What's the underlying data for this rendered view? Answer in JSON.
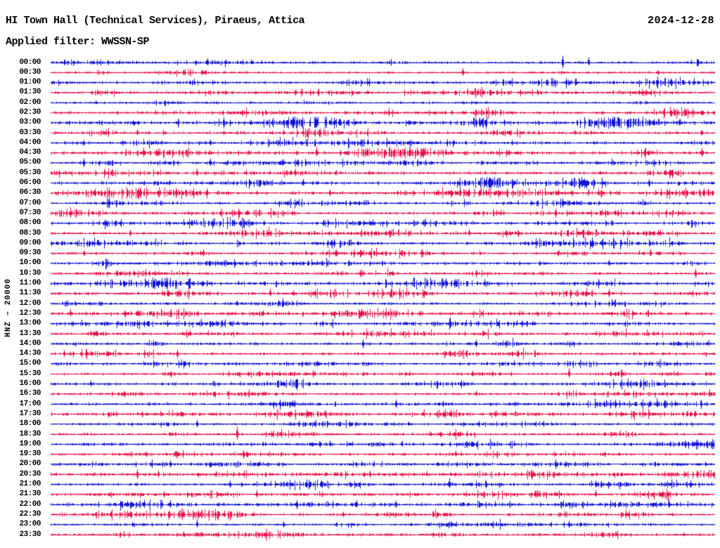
{
  "header": {
    "title": "HI Town Hall (Technical Services), Piraeus, Attica",
    "date": "2024-12-28",
    "filter": "Applied filter: WWSSN-SP"
  },
  "axis": {
    "scale_label": "HNZ – 20000"
  },
  "chart_data": {
    "type": "line",
    "title": "HI Town Hall (Technical Services), Piraeus, Attica",
    "subtitle": "Applied filter: WWSSN-SP",
    "date": "2024-12-28",
    "channel": "HNZ",
    "scale": 20000,
    "lines": 48,
    "minutes_per_line": 30,
    "time_range": [
      "00:00",
      "23:30"
    ],
    "trace_colors": {
      "blue": "#1013d6",
      "red": "#ea1048"
    },
    "rows": [
      {
        "time": "00:00",
        "color": "blue",
        "activity": 0.9,
        "events": [
          [
            0.77,
            10
          ],
          [
            0.81,
            7
          ]
        ]
      },
      {
        "time": "00:30",
        "color": "red",
        "activity": 0.7,
        "events": [
          [
            0.62,
            5
          ]
        ]
      },
      {
        "time": "01:00",
        "color": "blue",
        "activity": 1.0,
        "events": []
      },
      {
        "time": "01:30",
        "color": "red",
        "activity": 1.0,
        "events": []
      },
      {
        "time": "02:00",
        "color": "blue",
        "activity": 0.6,
        "events": []
      },
      {
        "time": "02:30",
        "color": "red",
        "activity": 1.1,
        "events": [
          [
            0.64,
            4
          ]
        ]
      },
      {
        "time": "03:00",
        "color": "blue",
        "activity": 1.7,
        "events": [
          [
            0.26,
            8
          ],
          [
            0.9,
            6
          ]
        ]
      },
      {
        "time": "03:30",
        "color": "red",
        "activity": 1.0,
        "events": [
          [
            0.13,
            4
          ],
          [
            0.35,
            4
          ]
        ]
      },
      {
        "time": "04:00",
        "color": "blue",
        "activity": 1.3,
        "events": [
          [
            0.24,
            5
          ],
          [
            0.05,
            4
          ]
        ]
      },
      {
        "time": "04:30",
        "color": "red",
        "activity": 1.6,
        "events": [
          [
            0.14,
            6
          ],
          [
            0.4,
            7
          ],
          [
            0.98,
            7
          ]
        ]
      },
      {
        "time": "05:00",
        "color": "blue",
        "activity": 1.0,
        "events": [
          [
            0.05,
            6
          ],
          [
            0.24,
            7
          ]
        ]
      },
      {
        "time": "05:30",
        "color": "red",
        "activity": 1.3,
        "events": [
          [
            0.22,
            6
          ],
          [
            0.38,
            4,
            30
          ]
        ]
      },
      {
        "time": "06:00",
        "color": "blue",
        "activity": 1.8,
        "events": [
          [
            0.63,
            4,
            55
          ],
          [
            0.38,
            6
          ],
          [
            0.9,
            6
          ]
        ]
      },
      {
        "time": "06:30",
        "color": "red",
        "activity": 1.8,
        "events": [
          [
            0.06,
            4,
            45
          ],
          [
            0.42,
            5
          ]
        ]
      },
      {
        "time": "07:00",
        "color": "blue",
        "activity": 1.0,
        "events": [
          [
            0.77,
            6
          ]
        ]
      },
      {
        "time": "07:30",
        "color": "red",
        "activity": 1.1,
        "events": [
          [
            0.76,
            6
          ],
          [
            0.85,
            4
          ]
        ]
      },
      {
        "time": "08:00",
        "color": "blue",
        "activity": 1.3,
        "events": []
      },
      {
        "time": "08:30",
        "color": "red",
        "activity": 1.1,
        "events": [
          [
            0.12,
            5
          ],
          [
            0.63,
            5
          ]
        ]
      },
      {
        "time": "09:00",
        "color": "blue",
        "activity": 1.4,
        "events": [
          [
            0.83,
            5
          ]
        ]
      },
      {
        "time": "09:30",
        "color": "red",
        "activity": 0.9,
        "events": [
          [
            0.23,
            6
          ],
          [
            0.43,
            5
          ]
        ]
      },
      {
        "time": "10:00",
        "color": "blue",
        "activity": 1.4,
        "events": [
          [
            0.84,
            5
          ]
        ]
      },
      {
        "time": "10:30",
        "color": "red",
        "activity": 1.0,
        "events": [
          [
            0.97,
            6
          ]
        ]
      },
      {
        "time": "11:00",
        "color": "blue",
        "activity": 1.5,
        "events": [
          [
            0.61,
            7
          ]
        ]
      },
      {
        "time": "11:30",
        "color": "red",
        "activity": 1.2,
        "events": [
          [
            0.33,
            6
          ],
          [
            0.84,
            5
          ]
        ]
      },
      {
        "time": "12:00",
        "color": "blue",
        "activity": 1.0,
        "events": [
          [
            0.28,
            4
          ]
        ]
      },
      {
        "time": "12:30",
        "color": "red",
        "activity": 1.5,
        "events": [
          [
            0.03,
            6
          ],
          [
            0.32,
            5
          ]
        ]
      },
      {
        "time": "13:00",
        "color": "blue",
        "activity": 1.0,
        "events": []
      },
      {
        "time": "13:30",
        "color": "red",
        "activity": 1.0,
        "events": [
          [
            0.06,
            4
          ],
          [
            0.21,
            5
          ],
          [
            0.44,
            5
          ]
        ]
      },
      {
        "time": "14:00",
        "color": "blue",
        "activity": 1.2,
        "events": [
          [
            0.47,
            6
          ],
          [
            0.64,
            5
          ]
        ]
      },
      {
        "time": "14:30",
        "color": "red",
        "activity": 1.1,
        "events": [
          [
            0.02,
            5
          ],
          [
            0.19,
            6
          ]
        ]
      },
      {
        "time": "15:00",
        "color": "blue",
        "activity": 0.8,
        "events": []
      },
      {
        "time": "15:30",
        "color": "red",
        "activity": 0.9,
        "events": [
          [
            0.78,
            7
          ]
        ]
      },
      {
        "time": "16:00",
        "color": "blue",
        "activity": 1.3,
        "events": [
          [
            0.06,
            4
          ]
        ]
      },
      {
        "time": "16:30",
        "color": "red",
        "activity": 1.0,
        "events": [
          [
            0.64,
            4
          ]
        ]
      },
      {
        "time": "17:00",
        "color": "blue",
        "activity": 1.5,
        "events": [
          [
            0.52,
            5
          ],
          [
            0.85,
            6
          ]
        ]
      },
      {
        "time": "17:30",
        "color": "red",
        "activity": 1.3,
        "events": []
      },
      {
        "time": "18:00",
        "color": "blue",
        "activity": 0.9,
        "events": [
          [
            0.22,
            5
          ]
        ]
      },
      {
        "time": "18:30",
        "color": "red",
        "activity": 1.0,
        "events": [
          [
            0.28,
            9
          ]
        ]
      },
      {
        "time": "19:00",
        "color": "blue",
        "activity": 1.0,
        "events": [
          [
            0.42,
            4
          ]
        ]
      },
      {
        "time": "19:30",
        "color": "red",
        "activity": 1.0,
        "events": [
          [
            0.29,
            6
          ],
          [
            0.61,
            5
          ]
        ]
      },
      {
        "time": "20:00",
        "color": "blue",
        "activity": 1.0,
        "events": [
          [
            0.18,
            6
          ],
          [
            0.76,
            6
          ]
        ]
      },
      {
        "time": "20:30",
        "color": "red",
        "activity": 1.5,
        "events": [
          [
            0.13,
            6
          ],
          [
            0.48,
            5
          ]
        ]
      },
      {
        "time": "21:00",
        "color": "blue",
        "activity": 1.0,
        "events": [
          [
            0.27,
            5
          ],
          [
            0.6,
            7
          ],
          [
            0.82,
            6
          ]
        ]
      },
      {
        "time": "21:30",
        "color": "red",
        "activity": 0.9,
        "events": [
          [
            0.17,
            5
          ],
          [
            0.31,
            6
          ],
          [
            0.82,
            5
          ]
        ]
      },
      {
        "time": "22:00",
        "color": "blue",
        "activity": 1.6,
        "events": [
          [
            0.18,
            6
          ],
          [
            0.37,
            7
          ],
          [
            0.46,
            5
          ],
          [
            0.52,
            5
          ],
          [
            0.93,
            6
          ]
        ]
      },
      {
        "time": "22:30",
        "color": "red",
        "activity": 1.2,
        "events": [
          [
            0.2,
            5
          ],
          [
            0.44,
            4
          ]
        ]
      },
      {
        "time": "23:00",
        "color": "blue",
        "activity": 0.8,
        "events": [
          [
            0.22,
            6
          ],
          [
            0.35,
            4
          ],
          [
            0.78,
            4
          ]
        ]
      },
      {
        "time": "23:30",
        "color": "red",
        "activity": 1.3,
        "events": []
      }
    ]
  }
}
